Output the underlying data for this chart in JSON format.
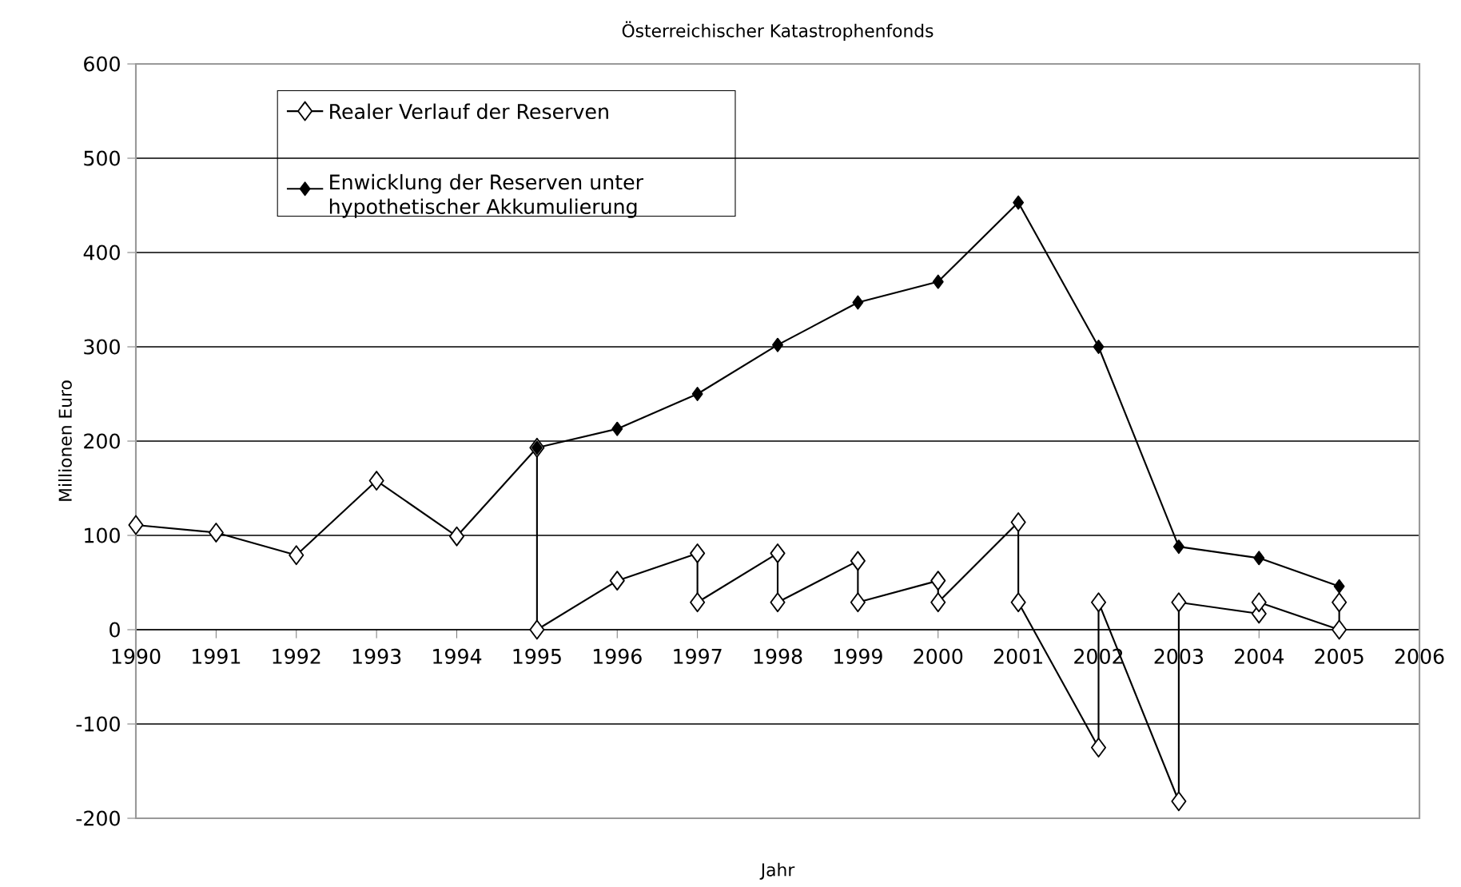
{
  "chart_data": {
    "type": "line",
    "title": "Österreichischer Katastrophenfonds",
    "xlabel": "Jahr",
    "ylabel": "Millionen Euro",
    "xlim": [
      1990,
      2006
    ],
    "xticks": [
      1990,
      1991,
      1992,
      1993,
      1994,
      1995,
      1996,
      1997,
      1998,
      1999,
      2000,
      2001,
      2002,
      2003,
      2004,
      2005,
      2006
    ],
    "ylim": [
      -200,
      600
    ],
    "yticks": [
      -200,
      -100,
      0,
      100,
      200,
      300,
      400,
      500,
      600
    ],
    "grid": "y",
    "legend": "top left",
    "line_style": "solid",
    "series": [
      {
        "name": "Realer Verlauf der Reserven",
        "color": "#000000",
        "marker": "diamond",
        "x": [
          1990,
          1991,
          1992,
          1993,
          1994,
          1995,
          1995,
          1996,
          1997,
          1997,
          1998,
          1998,
          1999,
          1999,
          2000,
          2000,
          2001,
          2001,
          2002,
          2002,
          2003,
          2003,
          2004,
          2004,
          2005,
          2005
        ],
        "values": [
          111,
          103,
          79,
          158,
          99,
          193,
          0,
          52,
          81,
          29,
          81,
          29,
          73,
          29,
          52,
          29,
          114,
          29,
          -125,
          29,
          -182,
          29,
          17,
          29,
          0,
          29
        ]
      },
      {
        "name": "Enwicklung der Reserven unter hypothetischer Akkumulierung",
        "color": "#000000",
        "marker": "diamond",
        "x": [
          1995,
          1996,
          1997,
          1998,
          1999,
          2000,
          2001,
          2002,
          2003,
          2004,
          2005
        ],
        "values": [
          193,
          213,
          250,
          302,
          347,
          369,
          453,
          300,
          88,
          76,
          46
        ]
      }
    ]
  }
}
